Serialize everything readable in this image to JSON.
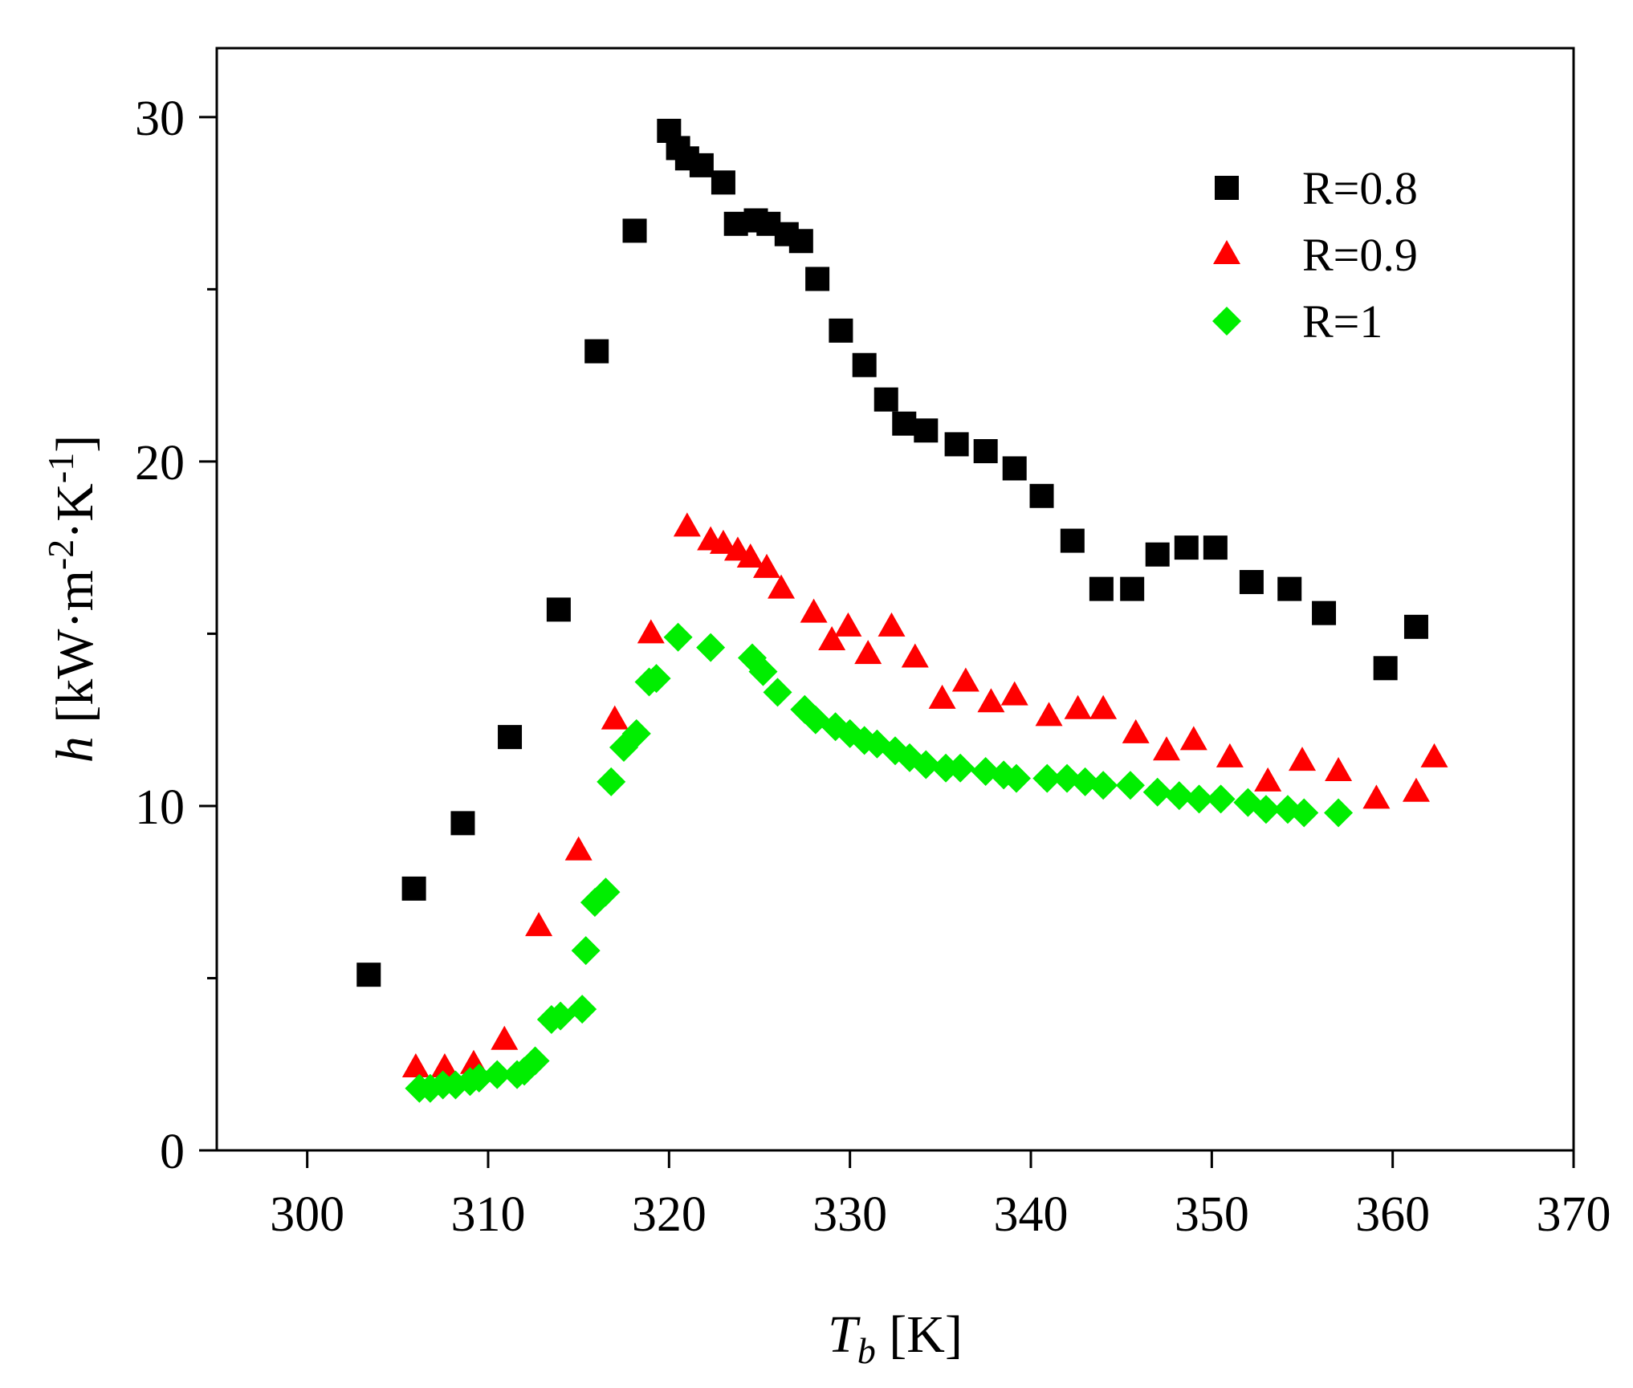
{
  "chart_data": {
    "type": "scatter",
    "title": "",
    "xlabel": {
      "main": "T",
      "sub": "b",
      "unit": " [K]"
    },
    "ylabel": {
      "main": "h",
      "unit_start": " [kW·m",
      "sup1": "-2",
      "unit_mid": "·K",
      "sup2": "-1",
      "unit_end": "]"
    },
    "xlim": [
      295,
      370
    ],
    "ylim": [
      0,
      32
    ],
    "xticks": [
      300,
      310,
      320,
      330,
      340,
      350,
      360,
      370
    ],
    "xtick_labels": [
      "300",
      "310",
      "320",
      "330",
      "340",
      "350",
      "360",
      "370"
    ],
    "yticks": [
      0,
      10,
      20,
      30
    ],
    "ytick_labels": [
      "0",
      "10",
      "20",
      "30"
    ],
    "y_minor_ticks": [
      5,
      15,
      25
    ],
    "grid": false,
    "legend_position": "top-right",
    "series": [
      {
        "name": "R=0.8",
        "marker": "square",
        "color": "#000000",
        "points": [
          [
            303.4,
            5.1
          ],
          [
            305.9,
            7.6
          ],
          [
            308.6,
            9.5
          ],
          [
            311.2,
            12.0
          ],
          [
            313.9,
            15.7
          ],
          [
            316.0,
            23.2
          ],
          [
            318.1,
            26.7
          ],
          [
            320.0,
            29.6
          ],
          [
            320.5,
            29.1
          ],
          [
            321.0,
            28.8
          ],
          [
            321.8,
            28.6
          ],
          [
            323.0,
            28.1
          ],
          [
            323.7,
            26.9
          ],
          [
            324.8,
            27.0
          ],
          [
            325.5,
            26.9
          ],
          [
            326.5,
            26.6
          ],
          [
            327.3,
            26.4
          ],
          [
            328.2,
            25.3
          ],
          [
            329.5,
            23.8
          ],
          [
            330.8,
            22.8
          ],
          [
            332.0,
            21.8
          ],
          [
            333.0,
            21.1
          ],
          [
            334.2,
            20.9
          ],
          [
            335.9,
            20.5
          ],
          [
            337.5,
            20.3
          ],
          [
            339.1,
            19.8
          ],
          [
            340.6,
            19.0
          ],
          [
            342.3,
            17.7
          ],
          [
            343.9,
            16.3
          ],
          [
            345.6,
            16.3
          ],
          [
            347.0,
            17.3
          ],
          [
            348.6,
            17.5
          ],
          [
            350.2,
            17.5
          ],
          [
            352.2,
            16.5
          ],
          [
            354.3,
            16.3
          ],
          [
            356.2,
            15.6
          ],
          [
            359.6,
            14.0
          ],
          [
            361.3,
            15.2
          ]
        ]
      },
      {
        "name": "R=0.9",
        "marker": "triangle",
        "color": "#ff0000",
        "points": [
          [
            306.0,
            2.4
          ],
          [
            307.6,
            2.4
          ],
          [
            309.2,
            2.5
          ],
          [
            310.9,
            3.2
          ],
          [
            312.8,
            6.5
          ],
          [
            315.0,
            8.7
          ],
          [
            317.0,
            12.5
          ],
          [
            319.0,
            15.0
          ],
          [
            321.0,
            18.1
          ],
          [
            322.3,
            17.7
          ],
          [
            323.0,
            17.6
          ],
          [
            323.8,
            17.4
          ],
          [
            324.5,
            17.2
          ],
          [
            325.4,
            16.9
          ],
          [
            326.2,
            16.3
          ],
          [
            328.0,
            15.6
          ],
          [
            329.0,
            14.8
          ],
          [
            329.9,
            15.2
          ],
          [
            331.0,
            14.4
          ],
          [
            332.3,
            15.2
          ],
          [
            333.6,
            14.3
          ],
          [
            335.1,
            13.1
          ],
          [
            336.4,
            13.6
          ],
          [
            337.8,
            13.0
          ],
          [
            339.1,
            13.2
          ],
          [
            341.0,
            12.6
          ],
          [
            342.6,
            12.8
          ],
          [
            344.0,
            12.8
          ],
          [
            345.8,
            12.1
          ],
          [
            347.5,
            11.6
          ],
          [
            349.0,
            11.9
          ],
          [
            351.0,
            11.4
          ],
          [
            353.1,
            10.7
          ],
          [
            355.0,
            11.3
          ],
          [
            357.0,
            11.0
          ],
          [
            359.1,
            10.2
          ],
          [
            361.3,
            10.4
          ],
          [
            362.3,
            11.4
          ]
        ]
      },
      {
        "name": "R=1",
        "marker": "diamond",
        "color": "#00ee00",
        "points": [
          [
            306.2,
            1.8
          ],
          [
            306.8,
            1.8
          ],
          [
            307.5,
            1.9
          ],
          [
            308.2,
            1.9
          ],
          [
            309.0,
            2.0
          ],
          [
            309.5,
            2.1
          ],
          [
            310.5,
            2.2
          ],
          [
            311.6,
            2.2
          ],
          [
            312.0,
            2.3
          ],
          [
            312.6,
            2.6
          ],
          [
            313.5,
            3.8
          ],
          [
            314.0,
            3.9
          ],
          [
            315.2,
            4.1
          ],
          [
            315.4,
            5.8
          ],
          [
            315.9,
            7.2
          ],
          [
            316.5,
            7.5
          ],
          [
            316.8,
            10.7
          ],
          [
            317.5,
            11.7
          ],
          [
            318.2,
            12.1
          ],
          [
            318.9,
            13.6
          ],
          [
            319.3,
            13.7
          ],
          [
            320.5,
            14.9
          ],
          [
            322.3,
            14.6
          ],
          [
            324.6,
            14.3
          ],
          [
            325.2,
            13.9
          ],
          [
            326.0,
            13.3
          ],
          [
            327.5,
            12.8
          ],
          [
            328.1,
            12.5
          ],
          [
            329.2,
            12.3
          ],
          [
            330.0,
            12.1
          ],
          [
            330.8,
            11.9
          ],
          [
            331.5,
            11.8
          ],
          [
            332.5,
            11.6
          ],
          [
            333.3,
            11.4
          ],
          [
            334.2,
            11.2
          ],
          [
            335.3,
            11.1
          ],
          [
            336.1,
            11.1
          ],
          [
            337.5,
            11.0
          ],
          [
            338.5,
            10.9
          ],
          [
            339.2,
            10.8
          ],
          [
            340.9,
            10.8
          ],
          [
            342.0,
            10.8
          ],
          [
            343.0,
            10.7
          ],
          [
            344.0,
            10.6
          ],
          [
            345.5,
            10.6
          ],
          [
            347.0,
            10.4
          ],
          [
            348.2,
            10.3
          ],
          [
            349.3,
            10.2
          ],
          [
            350.5,
            10.2
          ],
          [
            352.0,
            10.1
          ],
          [
            353.0,
            9.9
          ],
          [
            354.2,
            9.9
          ],
          [
            355.1,
            9.8
          ],
          [
            357.0,
            9.8
          ]
        ]
      }
    ]
  }
}
